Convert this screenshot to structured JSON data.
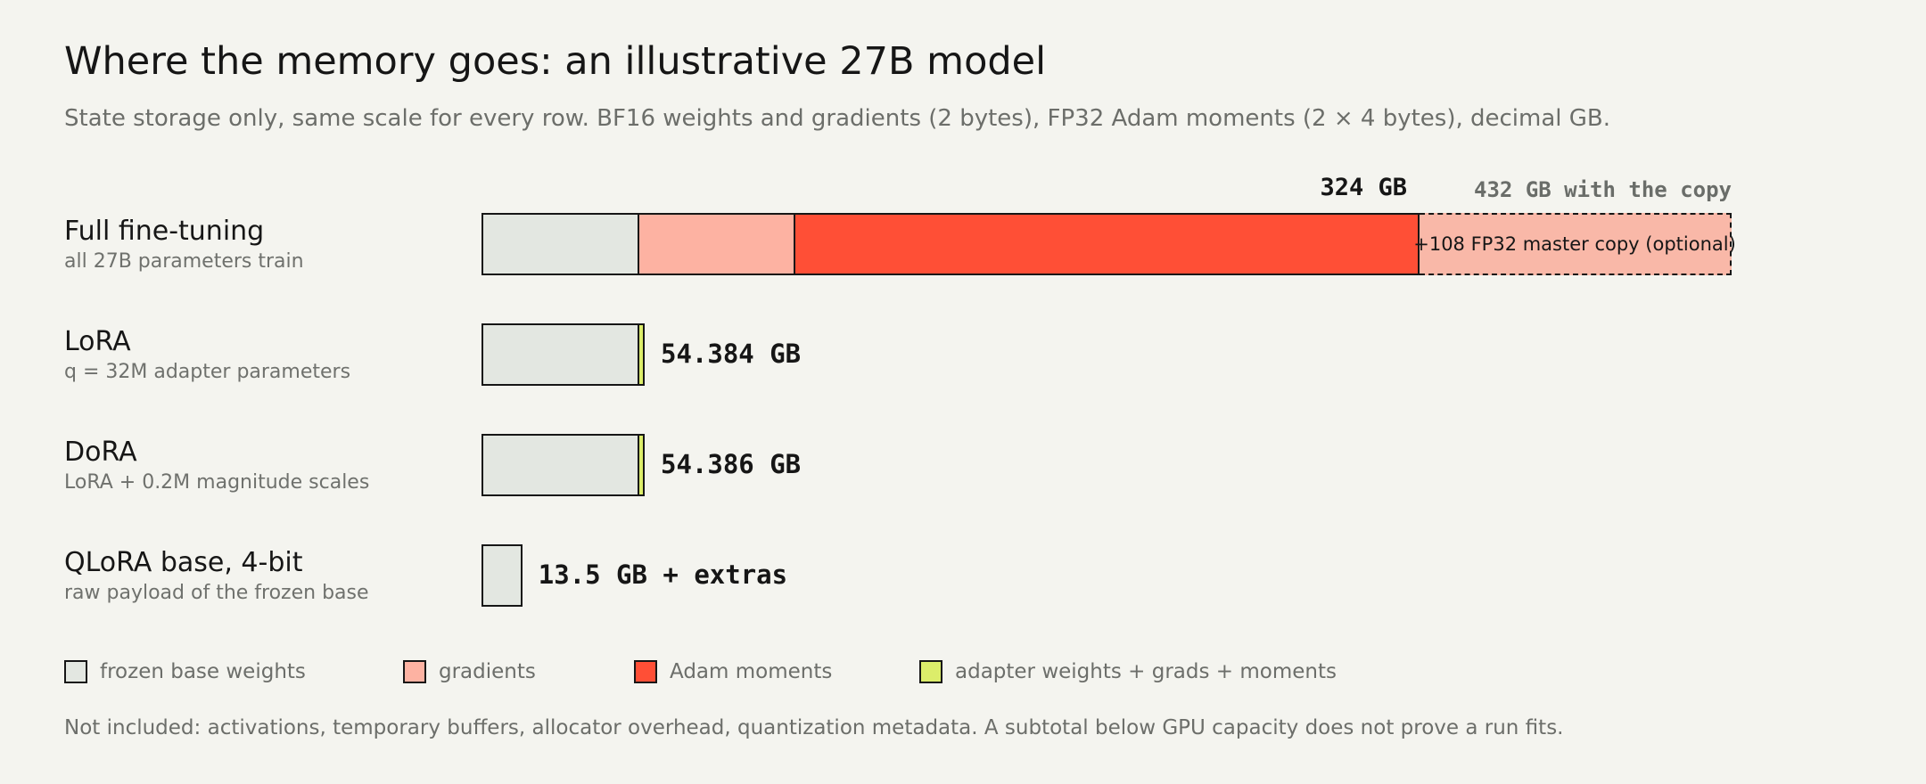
{
  "header": {
    "title": "Where the memory goes: an illustrative 27B model",
    "subtitle": "State storage only, same scale for every row. BF16 weights and gradients (2 bytes), FP32 Adam moments (2 × 4 bytes), decimal GB."
  },
  "colors": {
    "frozen": "#e3e7e1",
    "gradients": "#fdb2a2",
    "adam": "#ff4f36",
    "adapter": "#dced6a",
    "master_copy": "#f9b8a8"
  },
  "chart_data": {
    "type": "bar",
    "orientation": "horizontal",
    "stacked": true,
    "units": "GB",
    "xlim": [
      0,
      432
    ],
    "rows": [
      {
        "name": "Full fine-tuning",
        "description": "all 27B parameters train",
        "segments": [
          {
            "series": "frozen base weights",
            "value": 54
          },
          {
            "series": "gradients",
            "value": 54
          },
          {
            "series": "Adam moments",
            "value": 216
          }
        ],
        "value_label": "324 GB",
        "optional": {
          "value": 108,
          "label": "+108 FP32 master copy (optional)",
          "total_label": "432 GB with the copy"
        }
      },
      {
        "name": "LoRA",
        "description": "q = 32M adapter parameters",
        "segments": [
          {
            "series": "frozen base weights",
            "value": 54
          },
          {
            "series": "adapter weights + grads + moments",
            "value": 0.384
          }
        ],
        "value_label": "54.384 GB"
      },
      {
        "name": "DoRA",
        "description": "LoRA + 0.2M magnitude scales",
        "segments": [
          {
            "series": "frozen base weights",
            "value": 54
          },
          {
            "series": "adapter weights + grads + moments",
            "value": 0.386
          }
        ],
        "value_label": "54.386 GB"
      },
      {
        "name": "QLoRA base, 4-bit",
        "description": "raw payload of the frozen base",
        "segments": [
          {
            "series": "frozen base weights",
            "value": 13.5
          }
        ],
        "value_label": "13.5 GB + extras"
      }
    ],
    "legend": [
      {
        "name": "frozen base weights",
        "color": "#e3e7e1"
      },
      {
        "name": "gradients",
        "color": "#fdb2a2"
      },
      {
        "name": "Adam moments",
        "color": "#ff4f36"
      },
      {
        "name": "adapter weights + grads + moments",
        "color": "#dced6a"
      }
    ],
    "legend_position": "bottom"
  },
  "footnote": "Not included: activations, temporary buffers, allocator overhead, quantization metadata. A subtotal below GPU capacity does not prove a run fits."
}
